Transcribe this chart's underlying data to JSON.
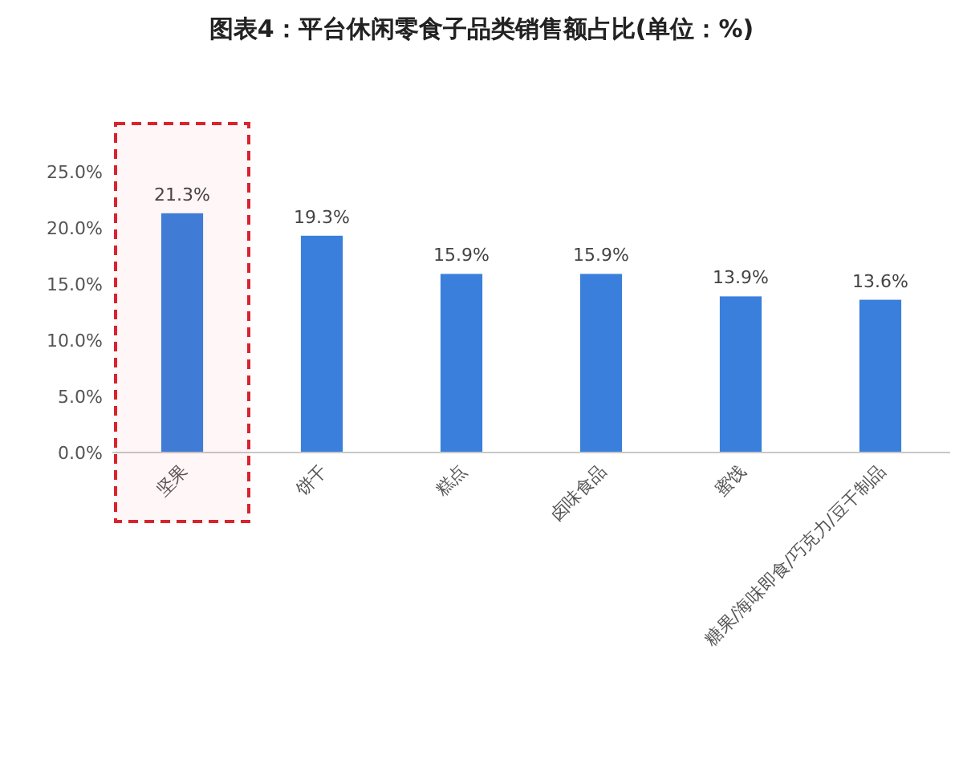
{
  "chart_data": {
    "type": "bar",
    "title": "图表4：平台休闲零食子品类销售额占比(单位：%)",
    "categories": [
      "坚果",
      "饼干",
      "糕点",
      "卤味食品",
      "蜜饯",
      "糖果/海味即食/巧克力/豆干制品"
    ],
    "values": [
      21.3,
      19.3,
      15.9,
      15.9,
      13.9,
      13.6
    ],
    "value_labels": [
      "21.3%",
      "19.3%",
      "15.9%",
      "15.9%",
      "13.9%",
      "13.6%"
    ],
    "color": "#3a7fdc",
    "ylim": [
      0,
      25
    ],
    "yticks": [
      {
        "value": 0,
        "label": "0.0%"
      },
      {
        "value": 5,
        "label": "5.0%"
      },
      {
        "value": 10,
        "label": "10.0%"
      },
      {
        "value": 15,
        "label": "15.0%"
      },
      {
        "value": 20,
        "label": "20.0%"
      },
      {
        "value": 25,
        "label": "25.0%"
      }
    ],
    "grid": false,
    "bands": [
      {
        "axis": "x",
        "from": "坚果",
        "to": "坚果",
        "color": "#d9232e"
      }
    ]
  }
}
